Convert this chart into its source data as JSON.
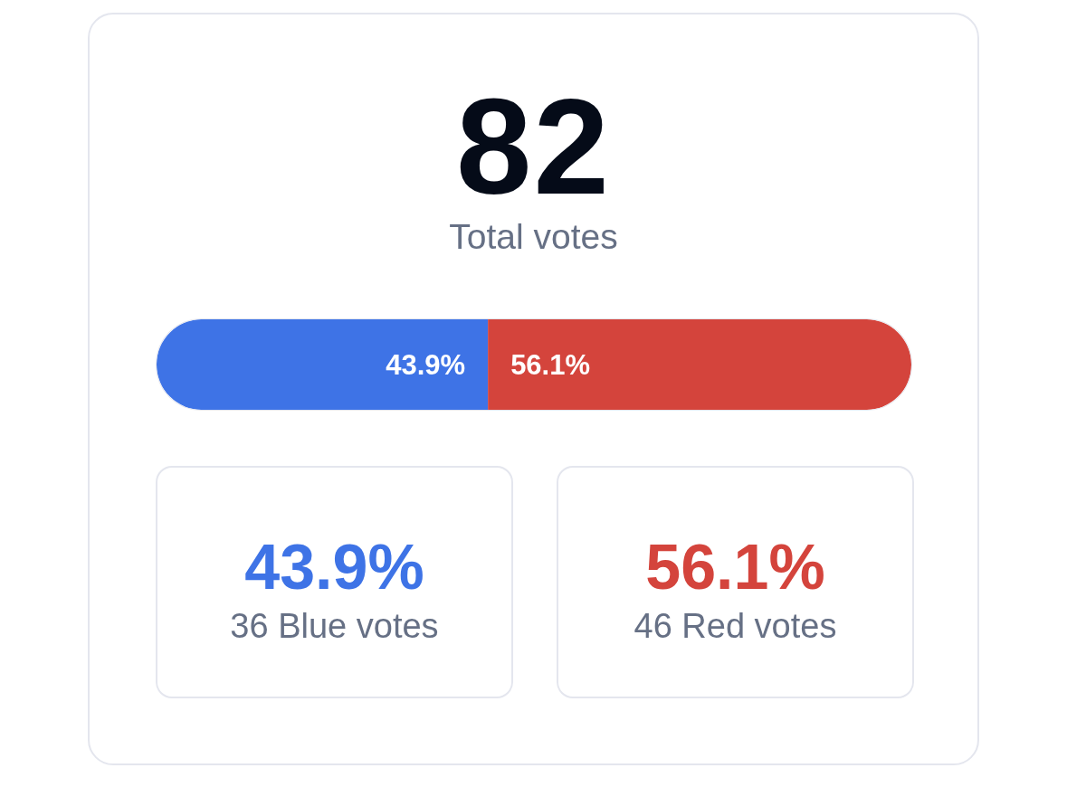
{
  "chart_data": {
    "type": "bar",
    "title": "82",
    "subtitle": "Total votes",
    "orientation": "horizontal",
    "stacked": true,
    "categories": [
      null
    ],
    "xlim": [
      0,
      100
    ],
    "tick_labels": false,
    "series": [
      {
        "color": "#3e73e6",
        "values": [
          43.9
        ],
        "value_labels": [
          "43.9%"
        ]
      },
      {
        "color": "#d4443c",
        "values": [
          56.1
        ],
        "value_labels": [
          "56.1%"
        ]
      }
    ],
    "annotations": [
      "43.9%",
      "36 Blue votes",
      "56.1%",
      "46 Red votes"
    ]
  }
}
